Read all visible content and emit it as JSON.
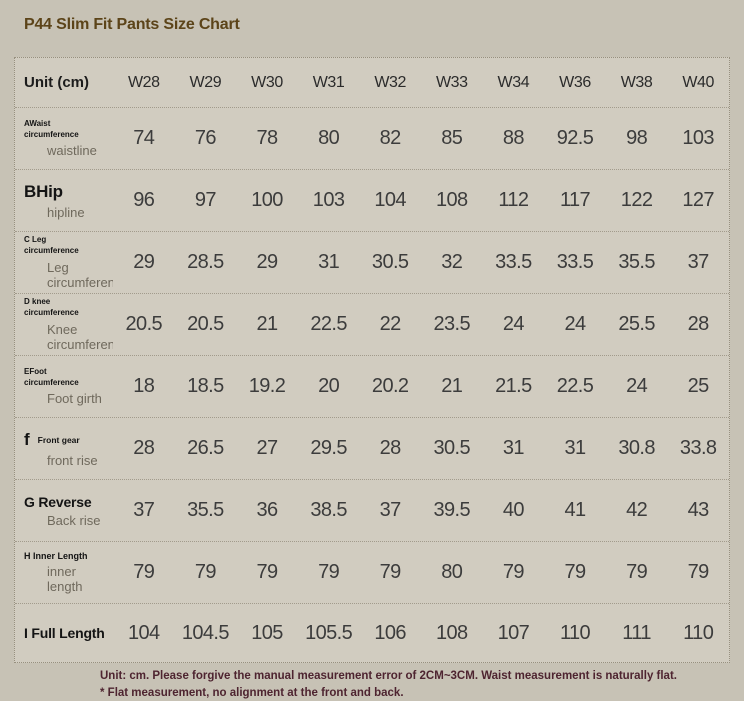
{
  "title": "P44 Slim Fit Pants Size Chart",
  "table": {
    "unit_header": "Unit (cm)",
    "sizes": [
      "W28",
      "W29",
      "W30",
      "W31",
      "W32",
      "W33",
      "W34",
      "W36",
      "W38",
      "W40"
    ],
    "rows": [
      {
        "label": "AWaist circumference",
        "sublabel": "waistline",
        "values": [
          "74",
          "76",
          "78",
          "80",
          "82",
          "85",
          "88",
          "92.5",
          "98",
          "103"
        ]
      },
      {
        "label": "BHip",
        "sublabel": "hipline",
        "values": [
          "96",
          "97",
          "100",
          "103",
          "104",
          "108",
          "112",
          "117",
          "122",
          "127"
        ]
      },
      {
        "label": "C Leg circumference",
        "sublabel": "Leg circumference",
        "values": [
          "29",
          "28.5",
          "29",
          "31",
          "30.5",
          "32",
          "33.5",
          "33.5",
          "35.5",
          "37"
        ]
      },
      {
        "label": "D knee circumference",
        "sublabel": "Knee circumference",
        "values": [
          "20.5",
          "20.5",
          "21",
          "22.5",
          "22",
          "23.5",
          "24",
          "24",
          "25.5",
          "28"
        ]
      },
      {
        "label": "EFoot circumference",
        "sublabel": "Foot girth",
        "values": [
          "18",
          "18.5",
          "19.2",
          "20",
          "20.2",
          "21",
          "21.5",
          "22.5",
          "24",
          "25"
        ]
      },
      {
        "label": "f Front gear",
        "sublabel": "front rise",
        "values": [
          "28",
          "26.5",
          "27",
          "29.5",
          "28",
          "30.5",
          "31",
          "31",
          "30.8",
          "33.8"
        ]
      },
      {
        "label": "G Reverse",
        "sublabel": "Back rise",
        "values": [
          "37",
          "35.5",
          "36",
          "38.5",
          "37",
          "39.5",
          "40",
          "41",
          "42",
          "43"
        ]
      },
      {
        "label": "H Inner Length",
        "sublabel": "inner length",
        "values": [
          "79",
          "79",
          "79",
          "79",
          "79",
          "80",
          "79",
          "79",
          "79",
          "79"
        ]
      },
      {
        "label": "I Full Length",
        "sublabel": "",
        "values": [
          "104",
          "104.5",
          "105",
          "105.5",
          "106",
          "108",
          "107",
          "110",
          "111",
          "110"
        ]
      }
    ]
  },
  "footnote": {
    "line1": "Unit: cm. Please forgive the manual measurement error of 2CM~3CM. Waist measurement is naturally flat.",
    "line2": "* Flat measurement, no alignment at the front and back."
  },
  "colors": {
    "page_background": "#c7c2b5",
    "table_background": "#d1ccc0",
    "title_text": "#5c4419",
    "value_text": "#3c3c3c",
    "sublabel_text": "#6f695c",
    "footnote_text": "#4e2430",
    "separator": "#a29b8c"
  }
}
